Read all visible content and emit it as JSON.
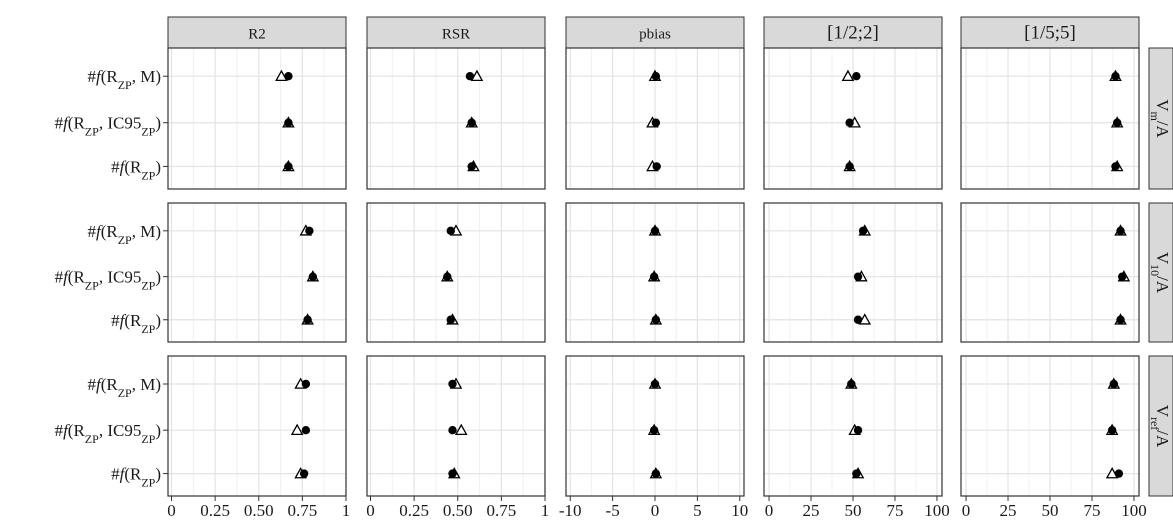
{
  "chart_data": {
    "type": "scatter",
    "facet_columns": [
      {
        "label": "R2",
        "ticks": [
          0,
          0.25,
          0.5,
          0.75,
          1
        ],
        "tick_labels": [
          "0",
          "0.25",
          "0.50",
          "0.75",
          "1"
        ],
        "xlim": [
          -0.02,
          1.0
        ]
      },
      {
        "label": "RSR",
        "ticks": [
          0,
          0.25,
          0.5,
          0.75,
          1
        ],
        "tick_labels": [
          "0",
          "0.25",
          "0.50",
          "0.75",
          "1"
        ],
        "xlim": [
          -0.02,
          1.0
        ]
      },
      {
        "label": "pbias",
        "ticks": [
          -10,
          -5,
          0,
          5,
          10
        ],
        "tick_labels": [
          "-10",
          "-5",
          "0",
          "5",
          "10"
        ],
        "xlim": [
          -10.5,
          10.5
        ]
      },
      {
        "label": "[1/2;2]",
        "ticks": [
          0,
          25,
          50,
          75,
          100
        ],
        "tick_labels": [
          "0",
          "25",
          "50",
          "75",
          "100"
        ],
        "xlim": [
          -3,
          103
        ]
      },
      {
        "label": "[1/5;5]",
        "ticks": [
          0,
          25,
          50,
          75,
          100
        ],
        "tick_labels": [
          "0",
          "25",
          "50",
          "75",
          "100"
        ],
        "xlim": [
          -3,
          103
        ]
      }
    ],
    "facet_rows": [
      {
        "label_main": "V",
        "label_sub": "m",
        "label_tail": "/A"
      },
      {
        "label_main": "V",
        "label_sub": "10",
        "label_tail": "/A"
      },
      {
        "label_main": "V",
        "label_sub": "ref",
        "label_tail": "/A"
      }
    ],
    "y_categories": [
      {
        "pre": "#",
        "fn": "f",
        "open": "(R",
        "sub1": "ZP",
        "mid": ", M",
        "sub2": "",
        "close": ")"
      },
      {
        "pre": "#",
        "fn": "f",
        "open": "(R",
        "sub1": "ZP",
        "mid": ", IC95",
        "sub2": "ZP",
        "close": ")"
      },
      {
        "pre": "#",
        "fn": "f",
        "open": "(R",
        "sub1": "ZP",
        "mid": "",
        "sub2": "",
        "close": ")"
      }
    ],
    "marker_types": [
      "filled-circle",
      "open-triangle"
    ],
    "grid": true,
    "points": [
      [
        [
          [
            0.67,
            0.63
          ],
          [
            0.67,
            0.67
          ],
          [
            0.67,
            0.67
          ]
        ],
        [
          [
            0.57,
            0.61
          ],
          [
            0.58,
            0.58
          ],
          [
            0.58,
            0.59
          ]
        ],
        [
          [
            0.1,
            0.0
          ],
          [
            0.1,
            -0.3
          ],
          [
            0.2,
            -0.3
          ]
        ],
        [
          [
            52,
            47
          ],
          [
            48,
            51
          ],
          [
            48,
            48
          ]
        ],
        [
          [
            89,
            89
          ],
          [
            90,
            90
          ],
          [
            89,
            90
          ]
        ]
      ],
      [
        [
          [
            0.79,
            0.77
          ],
          [
            0.81,
            0.81
          ],
          [
            0.78,
            0.78
          ]
        ],
        [
          [
            0.46,
            0.49
          ],
          [
            0.44,
            0.44
          ],
          [
            0.46,
            0.47
          ]
        ],
        [
          [
            0.0,
            0.0
          ],
          [
            -0.1,
            -0.1
          ],
          [
            0.1,
            0.1
          ]
        ],
        [
          [
            56,
            57
          ],
          [
            53,
            55
          ],
          [
            53,
            57
          ]
        ],
        [
          [
            92,
            92
          ],
          [
            93,
            94
          ],
          [
            92,
            92
          ]
        ]
      ],
      [
        [
          [
            0.77,
            0.74
          ],
          [
            0.77,
            0.72
          ],
          [
            0.76,
            0.74
          ]
        ],
        [
          [
            0.47,
            0.49
          ],
          [
            0.47,
            0.52
          ],
          [
            0.47,
            0.48
          ]
        ],
        [
          [
            0.0,
            0.0
          ],
          [
            -0.1,
            -0.1
          ],
          [
            0.1,
            0.1
          ]
        ],
        [
          [
            49,
            49
          ],
          [
            53,
            51
          ],
          [
            52,
            53
          ]
        ],
        [
          [
            88,
            88
          ],
          [
            87,
            87
          ],
          [
            91,
            87
          ]
        ]
      ]
    ]
  }
}
